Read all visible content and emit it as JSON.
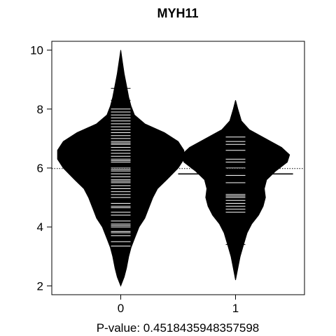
{
  "chart_data": {
    "type": "beanplot",
    "title": "MYH11",
    "xlabel": "P-value: 0.4518435948357598",
    "ylabel": "",
    "categories": [
      "0",
      "1"
    ],
    "yticks": [
      2,
      4,
      6,
      8,
      10
    ],
    "ylim": [
      1.7,
      10.3
    ],
    "xlim": [
      -0.6,
      1.6
    ],
    "overall_mean": 5.98,
    "colors": {
      "bean": "#000000",
      "line": "#ffffff",
      "frame": "#000000"
    },
    "series": [
      {
        "name": "0",
        "mean": 6.1,
        "density": [
          [
            2.0,
            0.0
          ],
          [
            2.3,
            0.03
          ],
          [
            2.6,
            0.05
          ],
          [
            3.0,
            0.07
          ],
          [
            3.3,
            0.09
          ],
          [
            3.6,
            0.12
          ],
          [
            4.0,
            0.16
          ],
          [
            4.3,
            0.21
          ],
          [
            4.6,
            0.24
          ],
          [
            5.0,
            0.28
          ],
          [
            5.3,
            0.32
          ],
          [
            5.6,
            0.4
          ],
          [
            6.0,
            0.5
          ],
          [
            6.3,
            0.55
          ],
          [
            6.6,
            0.55
          ],
          [
            6.9,
            0.5
          ],
          [
            7.2,
            0.38
          ],
          [
            7.5,
            0.21
          ],
          [
            7.8,
            0.12
          ],
          [
            8.1,
            0.09
          ],
          [
            8.4,
            0.07
          ],
          [
            8.8,
            0.05
          ],
          [
            9.2,
            0.03
          ],
          [
            9.6,
            0.015
          ],
          [
            10.0,
            0.0
          ]
        ],
        "points": [
          3.3,
          3.35,
          3.5,
          3.7,
          3.8,
          3.85,
          4.0,
          4.05,
          4.1,
          4.2,
          4.4,
          4.5,
          4.65,
          4.7,
          4.8,
          5.0,
          5.1,
          5.2,
          5.3,
          5.4,
          5.5,
          5.55,
          5.6,
          5.7,
          5.8,
          5.9,
          5.95,
          6.0,
          6.1,
          6.2,
          6.25,
          6.3,
          6.4,
          6.5,
          6.6,
          6.7,
          6.8,
          6.85,
          6.9,
          7.0,
          7.1,
          7.2,
          7.3,
          7.4,
          7.5,
          7.6,
          7.7,
          7.8,
          7.9,
          8.0,
          8.3,
          8.7
        ]
      },
      {
        "name": "1",
        "mean": 5.8,
        "density": [
          [
            2.2,
            0.0
          ],
          [
            2.6,
            0.02
          ],
          [
            3.0,
            0.04
          ],
          [
            3.4,
            0.07
          ],
          [
            3.8,
            0.1
          ],
          [
            4.1,
            0.14
          ],
          [
            4.4,
            0.2
          ],
          [
            4.7,
            0.24
          ],
          [
            5.0,
            0.26
          ],
          [
            5.3,
            0.25
          ],
          [
            5.6,
            0.27
          ],
          [
            5.9,
            0.35
          ],
          [
            6.2,
            0.45
          ],
          [
            6.45,
            0.47
          ],
          [
            6.7,
            0.4
          ],
          [
            7.0,
            0.26
          ],
          [
            7.3,
            0.12
          ],
          [
            7.6,
            0.05
          ],
          [
            8.0,
            0.02
          ],
          [
            8.3,
            0.0
          ]
        ],
        "points": [
          3.4,
          4.5,
          4.6,
          4.7,
          4.8,
          4.9,
          5.0,
          5.05,
          5.1,
          5.5,
          5.75,
          5.8,
          6.0,
          6.2,
          6.3,
          6.6,
          6.8,
          6.9,
          7.05
        ]
      }
    ]
  }
}
